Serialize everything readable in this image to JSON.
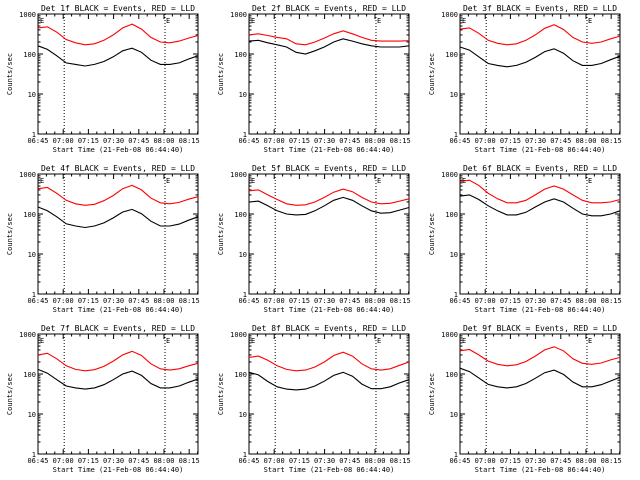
{
  "chart_data": [
    {
      "type": "line",
      "title": "Det 1f BLACK = Events, RED = LLD",
      "xlabel": "Start Time (21-Feb-08 06:44:40)",
      "ylabel": "Counts/sec",
      "scale": "log",
      "ylim": [
        1,
        1000
      ],
      "x_ticks": [
        "06:45",
        "07:00",
        "07:15",
        "07:30",
        "07:45",
        "08:00",
        "08:15"
      ],
      "y_ticks": [
        "1",
        "10",
        "100",
        "1000"
      ],
      "markers": [
        "E",
        "E"
      ],
      "series": [
        {
          "color": "#ff0000",
          "values": [
            450,
            480,
            350,
            230,
            190,
            170,
            180,
            220,
            300,
            450,
            560,
            420,
            260,
            200,
            190,
            210,
            250,
            290
          ]
        },
        {
          "color": "#000000",
          "values": [
            160,
            130,
            90,
            60,
            55,
            50,
            55,
            65,
            85,
            120,
            140,
            110,
            70,
            55,
            55,
            60,
            75,
            90
          ]
        }
      ]
    },
    {
      "type": "line",
      "title": "Det 2f BLACK = Events, RED = LLD",
      "xlabel": "Start Time (21-Feb-08 06:44:40)",
      "ylabel": "Counts/sec",
      "scale": "log",
      "ylim": [
        1,
        1000
      ],
      "x_ticks": [
        "06:45",
        "07:00",
        "07:15",
        "07:30",
        "07:45",
        "08:00",
        "08:15"
      ],
      "y_ticks": [
        "1",
        "10",
        "100",
        "1000"
      ],
      "markers": [
        "E",
        "E"
      ],
      "series": [
        {
          "color": "#ff0000",
          "values": [
            300,
            320,
            290,
            260,
            240,
            180,
            170,
            200,
            250,
            320,
            380,
            320,
            260,
            220,
            210,
            210,
            210,
            215
          ]
        },
        {
          "color": "#000000",
          "values": [
            210,
            220,
            190,
            170,
            150,
            110,
            100,
            120,
            150,
            200,
            240,
            210,
            180,
            160,
            150,
            150,
            150,
            160
          ]
        }
      ]
    },
    {
      "type": "line",
      "title": "Det 3f BLACK = Events, RED = LLD",
      "xlabel": "Start Time (21-Feb-08 06:44:40)",
      "ylabel": "Counts/sec",
      "scale": "log",
      "ylim": [
        1,
        1000
      ],
      "x_ticks": [
        "06:45",
        "07:00",
        "07:15",
        "07:30",
        "07:45",
        "08:00",
        "08:15"
      ],
      "y_ticks": [
        "1",
        "10",
        "100",
        "1000"
      ],
      "markers": [
        "E",
        "E"
      ],
      "series": [
        {
          "color": "#ff0000",
          "values": [
            420,
            450,
            330,
            220,
            185,
            170,
            180,
            220,
            300,
            440,
            540,
            410,
            260,
            200,
            185,
            200,
            240,
            280
          ]
        },
        {
          "color": "#000000",
          "values": [
            150,
            125,
            85,
            58,
            52,
            48,
            52,
            62,
            82,
            115,
            135,
            105,
            68,
            52,
            52,
            58,
            72,
            88
          ]
        }
      ]
    },
    {
      "type": "line",
      "title": "Det 4f BLACK = Events, RED = LLD",
      "xlabel": "Start Time (21-Feb-08 06:44:40)",
      "ylabel": "Counts/sec",
      "scale": "log",
      "ylim": [
        1,
        1000
      ],
      "x_ticks": [
        "06:45",
        "07:00",
        "07:15",
        "07:30",
        "07:45",
        "08:00",
        "08:15"
      ],
      "y_ticks": [
        "1",
        "10",
        "100",
        "1000"
      ],
      "markers": [
        "E",
        "E"
      ],
      "series": [
        {
          "color": "#ff0000",
          "values": [
            430,
            460,
            330,
            220,
            180,
            165,
            175,
            215,
            290,
            430,
            520,
            400,
            250,
            190,
            180,
            195,
            235,
            270
          ]
        },
        {
          "color": "#000000",
          "values": [
            150,
            120,
            85,
            57,
            50,
            46,
            50,
            60,
            80,
            112,
            130,
            102,
            66,
            50,
            50,
            56,
            70,
            85
          ]
        }
      ]
    },
    {
      "type": "line",
      "title": "Det 5f BLACK = Events, RED = LLD",
      "xlabel": "Start Time (21-Feb-08 06:44:40)",
      "ylabel": "Counts/sec",
      "scale": "log",
      "ylim": [
        1,
        1000
      ],
      "x_ticks": [
        "06:45",
        "07:00",
        "07:15",
        "07:30",
        "07:45",
        "08:00",
        "08:15"
      ],
      "y_ticks": [
        "1",
        "10",
        "100",
        "1000"
      ],
      "markers": [
        "E",
        "E"
      ],
      "series": [
        {
          "color": "#ff0000",
          "values": [
            380,
            400,
            300,
            230,
            180,
            165,
            170,
            200,
            260,
            350,
            420,
            360,
            260,
            200,
            180,
            185,
            210,
            240
          ]
        },
        {
          "color": "#000000",
          "values": [
            200,
            210,
            160,
            120,
            100,
            95,
            98,
            120,
            160,
            220,
            260,
            220,
            160,
            120,
            105,
            108,
            125,
            145
          ]
        }
      ]
    },
    {
      "type": "line",
      "title": "Det 6f BLACK = Events, RED = LLD",
      "xlabel": "Start Time (21-Feb-08 06:44:40)",
      "ylabel": "Counts/sec",
      "scale": "log",
      "ylim": [
        1,
        1000
      ],
      "x_ticks": [
        "06:45",
        "07:00",
        "07:15",
        "07:30",
        "07:45",
        "08:00",
        "08:15"
      ],
      "y_ticks": [
        "1",
        "10",
        "100",
        "1000"
      ],
      "markers": [
        "E",
        "E"
      ],
      "series": [
        {
          "color": "#ff0000",
          "values": [
            650,
            700,
            520,
            330,
            240,
            190,
            190,
            220,
            300,
            420,
            500,
            420,
            300,
            220,
            190,
            190,
            200,
            230
          ]
        },
        {
          "color": "#000000",
          "values": [
            280,
            300,
            230,
            160,
            120,
            95,
            95,
            110,
            150,
            200,
            240,
            200,
            140,
            100,
            90,
            90,
            100,
            120
          ]
        }
      ]
    },
    {
      "type": "line",
      "title": "Det 7f BLACK = Events, RED = LLD",
      "xlabel": "Start Time (21-Feb-08 06:44:40)",
      "ylabel": "Counts/sec",
      "scale": "log",
      "ylim": [
        1,
        1000
      ],
      "x_ticks": [
        "06:45",
        "07:00",
        "07:15",
        "07:30",
        "07:45",
        "08:00",
        "08:15"
      ],
      "y_ticks": [
        "1",
        "10",
        "100",
        "1000"
      ],
      "markers": [
        "E",
        "E"
      ],
      "series": [
        {
          "color": "#ff0000",
          "values": [
            300,
            330,
            240,
            160,
            130,
            120,
            128,
            155,
            210,
            300,
            370,
            290,
            180,
            135,
            125,
            135,
            160,
            185
          ]
        },
        {
          "color": "#000000",
          "values": [
            130,
            105,
            72,
            50,
            45,
            42,
            45,
            54,
            72,
            100,
            118,
            92,
            58,
            45,
            45,
            50,
            62,
            75
          ]
        }
      ]
    },
    {
      "type": "line",
      "title": "Det 8f BLACK = Events, RED = LLD",
      "xlabel": "Start Time (21-Feb-08 06:44:40)",
      "ylabel": "Counts/sec",
      "scale": "log",
      "ylim": [
        1,
        1000
      ],
      "x_ticks": [
        "06:45",
        "07:00",
        "07:15",
        "07:30",
        "07:45",
        "08:00",
        "08:15"
      ],
      "y_ticks": [
        "1",
        "10",
        "100",
        "1000"
      ],
      "markers": [
        "E",
        "E"
      ],
      "series": [
        {
          "color": "#ff0000",
          "values": [
            260,
            280,
            220,
            160,
            130,
            120,
            125,
            150,
            200,
            290,
            350,
            280,
            180,
            135,
            125,
            135,
            165,
            200
          ]
        },
        {
          "color": "#000000",
          "values": [
            110,
            95,
            65,
            48,
            42,
            40,
            42,
            50,
            66,
            92,
            110,
            88,
            56,
            43,
            43,
            48,
            60,
            72
          ]
        }
      ]
    },
    {
      "type": "line",
      "title": "Det 9f BLACK = Events, RED = LLD",
      "xlabel": "Start Time (21-Feb-08 06:44:40)",
      "ylabel": "Counts/sec",
      "scale": "log",
      "ylim": [
        1,
        1000
      ],
      "x_ticks": [
        "06:45",
        "07:00",
        "07:15",
        "07:30",
        "07:45",
        "08:00",
        "08:15"
      ],
      "y_ticks": [
        "1",
        "10",
        "100",
        "1000"
      ],
      "markers": [
        "E",
        "E"
      ],
      "series": [
        {
          "color": "#ff0000",
          "values": [
            380,
            410,
            300,
            210,
            175,
            160,
            170,
            205,
            280,
            400,
            480,
            380,
            240,
            185,
            175,
            188,
            225,
            260
          ]
        },
        {
          "color": "#000000",
          "values": [
            140,
            115,
            80,
            55,
            48,
            45,
            48,
            58,
            78,
            108,
            125,
            98,
            63,
            48,
            48,
            54,
            67,
            82
          ]
        }
      ]
    }
  ]
}
